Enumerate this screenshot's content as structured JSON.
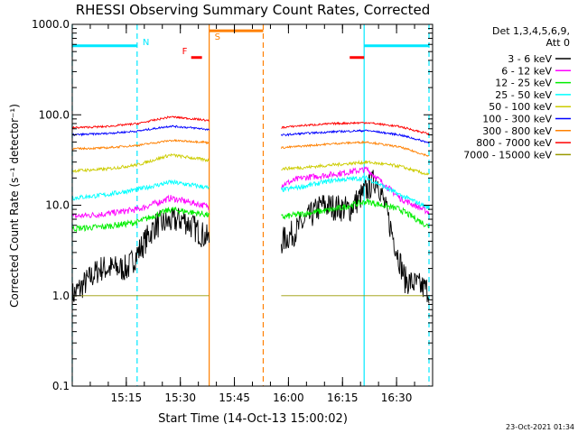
{
  "chart_data": {
    "type": "line",
    "title": "RHESSI Observing Summary Count Rates, Corrected",
    "xlabel": "Start Time (14-Oct-13 15:00:02)",
    "ylabel": "Corrected Count Rate (s⁻¹ detector⁻¹)",
    "yscale": "log",
    "ylim": [
      0.1,
      1000.0
    ],
    "y_ticks": [
      0.1,
      1.0,
      10.0,
      100.0,
      1000.0
    ],
    "y_tick_labels": [
      "0.1",
      "1.0",
      "10.0",
      "100.0",
      "1000.0"
    ],
    "xlim": [
      "15:00",
      "16:40"
    ],
    "x_ticks": [
      "15:15",
      "15:30",
      "15:45",
      "16:00",
      "16:15",
      "16:30"
    ],
    "legend_header": [
      "Det 1,3,4,5,6,9,",
      "Att 0"
    ],
    "legend_position": "right",
    "footer": "23-Oct-2021 01:34",
    "annotations": [
      {
        "label": "N",
        "color": "#00e8ff",
        "time": "15:18"
      },
      {
        "label": "F",
        "color": "#ff0000",
        "time": "15:33"
      },
      {
        "label": "S",
        "color": "#ff8000",
        "time": "15:38"
      }
    ],
    "bands": [
      {
        "label": "N",
        "color": "#00e8ff",
        "start": "15:00",
        "end": "15:18",
        "level": 580
      },
      {
        "label": "S",
        "color": "#ff8000",
        "start": "15:38",
        "end": "15:53",
        "level": 850
      },
      {
        "label": "N",
        "color": "#00e8ff",
        "start": "16:21",
        "end": "16:39",
        "level": 580
      },
      {
        "label": "F",
        "color": "#ff0000",
        "start": "15:33",
        "end": "15:36",
        "level": 430
      },
      {
        "label": "F",
        "color": "#ff0000",
        "start": "16:17",
        "end": "16:21",
        "level": 430
      }
    ],
    "vlines": [
      {
        "time": "15:00",
        "color": "#00e8ff",
        "style": "dashed"
      },
      {
        "time": "15:18",
        "color": "#00e8ff",
        "style": "dashed"
      },
      {
        "time": "15:38",
        "color": "#ff8000",
        "style": "solid"
      },
      {
        "time": "15:53",
        "color": "#ff8000",
        "style": "dashed"
      },
      {
        "time": "16:21",
        "color": "#00e8ff",
        "style": "solid"
      },
      {
        "time": "16:39",
        "color": "#00e8ff",
        "style": "dashed"
      }
    ],
    "segments": [
      {
        "start": "15:00",
        "end": "15:38"
      },
      {
        "start": "15:58",
        "end": "16:39"
      }
    ],
    "series": [
      {
        "name": "3 - 6 keV",
        "color": "#000000",
        "level": [
          1.0,
          2.0,
          2.0,
          6.0,
          7.0,
          4.0,
          1.5,
          3.0,
          5.0,
          10.0,
          9.0,
          20.0,
          1.5,
          1.1
        ],
        "noise": 0.35
      },
      {
        "name": "6 - 12 keV",
        "color": "#ff00ff",
        "level": [
          7.5,
          8.0,
          9.0,
          12.0,
          10.0,
          8.0,
          15.0,
          20.0,
          22.0,
          25.0,
          12.0,
          8.0
        ],
        "noise": 0.08
      },
      {
        "name": "12 - 25 keV",
        "color": "#00ee00",
        "level": [
          5.5,
          5.8,
          6.5,
          9.0,
          8.0,
          6.5,
          7.0,
          8.0,
          9.0,
          11.0,
          9.0,
          5.5
        ],
        "noise": 0.08
      },
      {
        "name": "25 - 50 keV",
        "color": "#00ffff",
        "level": [
          12.0,
          13.0,
          15.0,
          18.0,
          16.0,
          13.0,
          14.0,
          16.0,
          19.0,
          20.0,
          13.0,
          9.0
        ],
        "noise": 0.06
      },
      {
        "name": "50 - 100 keV",
        "color": "#cccc00",
        "level": [
          24.0,
          25.0,
          28.0,
          36.0,
          32.0,
          28.0,
          25.0,
          26.0,
          28.0,
          30.0,
          27.0,
          21.0
        ],
        "noise": 0.04
      },
      {
        "name": "100 - 300 keV",
        "color": "#0000ff",
        "level": [
          60.0,
          62.0,
          66.0,
          75.0,
          70.0,
          60.0,
          58.0,
          62.0,
          65.0,
          67.0,
          60.0,
          48.0
        ],
        "noise": 0.025
      },
      {
        "name": "300 - 800 keV",
        "color": "#ff8000",
        "level": [
          42.0,
          43.0,
          46.0,
          52.0,
          50.0,
          44.0,
          42.0,
          45.0,
          48.0,
          50.0,
          44.0,
          34.0
        ],
        "noise": 0.025
      },
      {
        "name": "800 - 7000 keV",
        "color": "#ff0000",
        "level": [
          72.0,
          74.0,
          80.0,
          95.0,
          88.0,
          74.0,
          70.0,
          76.0,
          80.0,
          82.0,
          74.0,
          60.0
        ],
        "noise": 0.025
      },
      {
        "name": "7000 - 15000 keV",
        "color": "#999900",
        "level": [
          1.0,
          1.0,
          1.0,
          1.0,
          1.0,
          1.0,
          1.0,
          1.0,
          1.0,
          1.0,
          1.0,
          1.0
        ],
        "noise": 0.0
      }
    ]
  }
}
